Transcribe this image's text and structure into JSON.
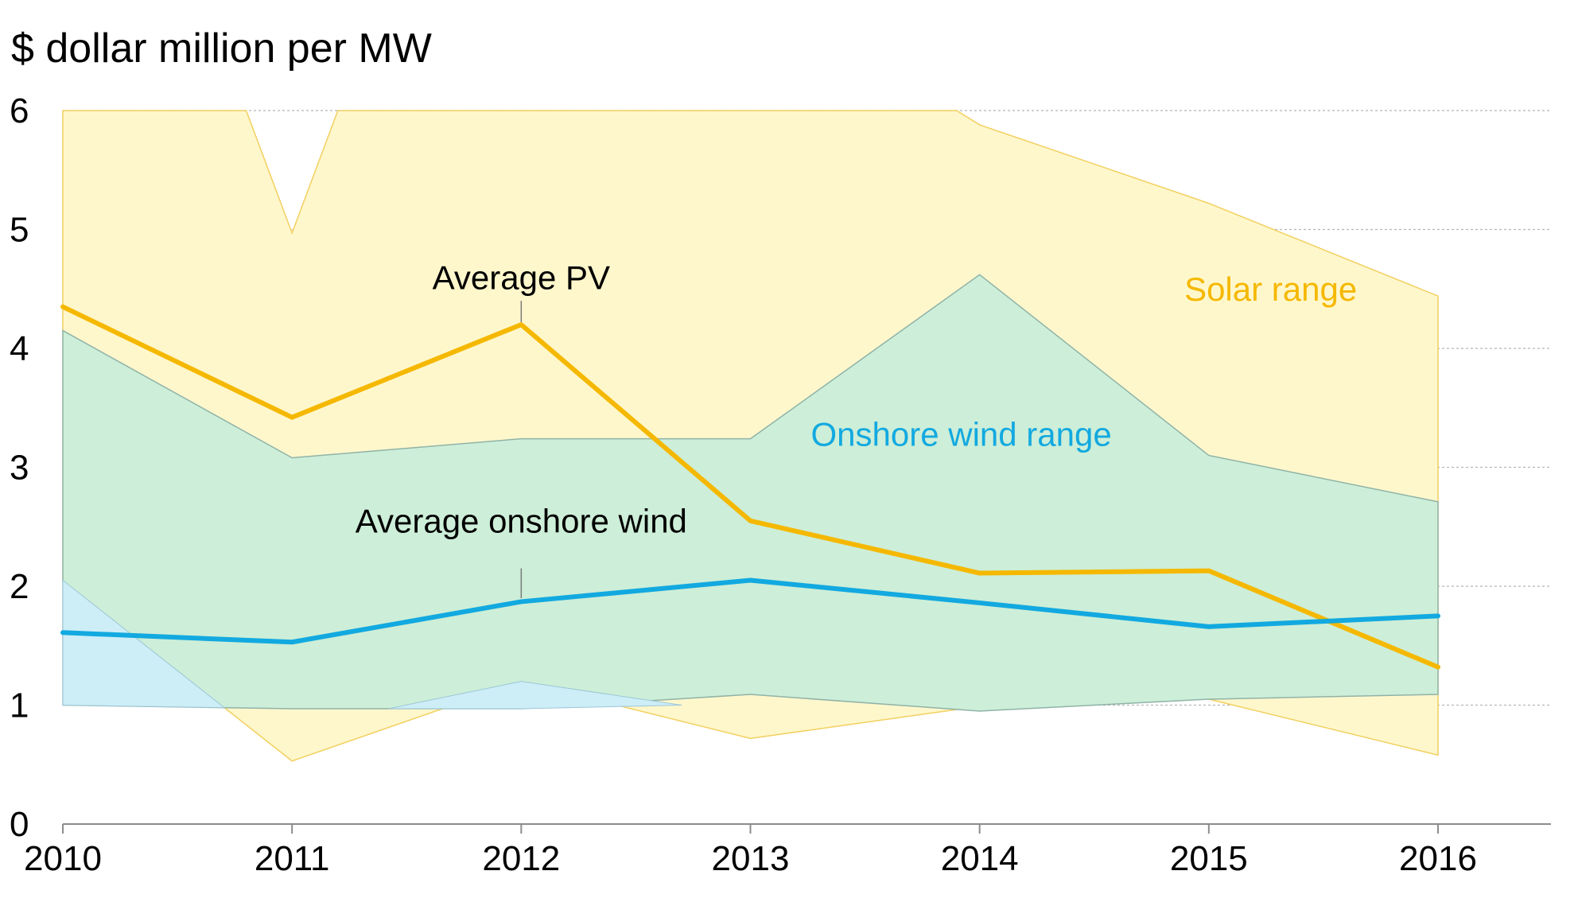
{
  "chart_data": {
    "type": "area",
    "ylabel": "$ dollar million per MW",
    "xlabel": "",
    "title": "",
    "x": [
      2010,
      2011,
      2012,
      2013,
      2014,
      2015,
      2016
    ],
    "xlim": [
      2010,
      2016.5
    ],
    "ylim": [
      0,
      6
    ],
    "yticks": [
      0,
      1,
      2,
      3,
      4,
      5,
      6
    ],
    "grid": true,
    "ranges": [
      {
        "name": "Solar range",
        "color": "#fff7cc",
        "edge_color": "#f2d060",
        "high": [
          [
            2010,
            6.0
          ],
          [
            2010.8,
            6.0
          ],
          [
            2011,
            4.97
          ],
          [
            2011.2,
            6.0
          ],
          [
            2013.9,
            6.0
          ],
          [
            2014,
            5.88
          ],
          [
            2015,
            5.22
          ],
          [
            2016,
            4.44
          ]
        ],
        "low": [
          [
            2010,
            2.05
          ],
          [
            2011,
            0.53
          ],
          [
            2012,
            1.2
          ],
          [
            2013,
            0.72
          ],
          [
            2014,
            0.99
          ],
          [
            2015,
            1.05
          ],
          [
            2016,
            0.58
          ]
        ]
      },
      {
        "name": "Onshore wind range",
        "color": "#cdeed8",
        "edge_color": "#8fb3a8",
        "high": [
          [
            2010,
            4.15
          ],
          [
            2011,
            3.08
          ],
          [
            2012,
            3.24
          ],
          [
            2013,
            3.24
          ],
          [
            2014,
            4.62
          ],
          [
            2015,
            3.1
          ],
          [
            2016,
            2.71
          ]
        ],
        "low": [
          [
            2010,
            1.0
          ],
          [
            2011,
            0.97
          ],
          [
            2012,
            0.97
          ],
          [
            2013,
            1.09
          ],
          [
            2014,
            0.95
          ],
          [
            2015,
            1.05
          ],
          [
            2016,
            1.09
          ]
        ]
      }
    ],
    "wind_low_sliver_color": "#cdeef7",
    "series": [
      {
        "name": "Average PV",
        "color": "#f5b800",
        "values": [
          4.35,
          3.42,
          4.2,
          2.55,
          2.11,
          2.13,
          1.32
        ]
      },
      {
        "name": "Average onshore wind",
        "color": "#12a9e0",
        "values": [
          1.61,
          1.53,
          1.87,
          2.05,
          1.86,
          1.66,
          1.75
        ]
      }
    ],
    "annotations": [
      {
        "text": "Average PV",
        "color": "#000000",
        "x": 2012,
        "y": 4.5,
        "pointer": [
          2012,
          4.4,
          2012,
          4.22
        ]
      },
      {
        "text": "Average onshore wind",
        "color": "#000000",
        "x": 2012,
        "y": 2.45,
        "pointer": [
          2012,
          2.15,
          2012,
          1.9
        ]
      },
      {
        "text": "Solar range",
        "color": "#f5b800",
        "x": 2015.27,
        "y": 4.4,
        "pointer": null
      },
      {
        "text": "Onshore wind range",
        "color": "#12a9e0",
        "x": 2013.92,
        "y": 3.18,
        "pointer": null
      }
    ]
  }
}
